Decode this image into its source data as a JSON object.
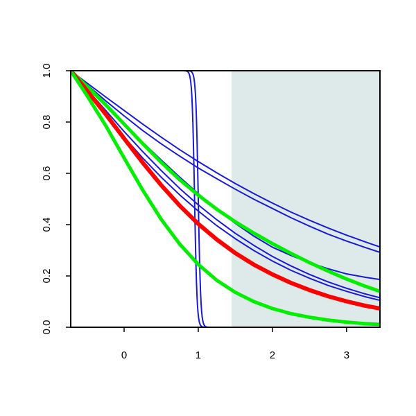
{
  "chart_data": {
    "type": "line",
    "title": "",
    "xlabel": "",
    "ylabel": "",
    "xlim": [
      -0.72,
      3.45
    ],
    "ylim": [
      0.0,
      1.0
    ],
    "grid": false,
    "legend": "none",
    "x_ticks": [
      0,
      1,
      2,
      3
    ],
    "x_tick_labels": [
      "0",
      "1",
      "2",
      "3"
    ],
    "y_ticks": [
      0.0,
      0.2,
      0.4,
      0.6,
      0.8,
      1.0
    ],
    "y_tick_labels": [
      "0.0",
      "0.2",
      "0.4",
      "0.6",
      "0.8",
      "1.0"
    ],
    "shaded_region": {
      "x_from": 1.45,
      "x_to": 3.45,
      "color": "#deeaea"
    },
    "colors": {
      "blue": "#1a1ad8",
      "red": "#ff0000",
      "green": "#00ee00",
      "axis": "#000000"
    },
    "x": [
      -0.72,
      -0.5,
      -0.25,
      0.0,
      0.25,
      0.5,
      0.75,
      1.0,
      1.25,
      1.5,
      1.75,
      2.0,
      2.25,
      2.5,
      2.75,
      3.0,
      3.25,
      3.45
    ],
    "series": [
      {
        "color": "blue",
        "width": 2,
        "values": [
          1.0,
          0.952,
          0.898,
          0.845,
          0.792,
          0.741,
          0.692,
          0.646,
          0.602,
          0.56,
          0.521,
          0.484,
          0.449,
          0.417,
          0.387,
          0.359,
          0.333,
          0.313
        ]
      },
      {
        "color": "blue",
        "width": 2,
        "values": [
          1.0,
          0.945,
          0.883,
          0.824,
          0.767,
          0.715,
          0.667,
          0.621,
          0.579,
          0.538,
          0.499,
          0.463,
          0.427,
          0.394,
          0.363,
          0.336,
          0.311,
          0.292
        ]
      },
      {
        "color": "blue",
        "width": 2,
        "values": [
          1.0,
          0.936,
          0.864,
          0.792,
          0.721,
          0.652,
          0.585,
          0.521,
          0.46,
          0.405,
          0.355,
          0.312,
          0.28,
          0.252,
          0.228,
          0.208,
          0.195,
          0.186
        ]
      },
      {
        "color": "blue",
        "width": 2,
        "values": [
          1.0,
          0.927,
          0.846,
          0.763,
          0.685,
          0.611,
          0.541,
          0.477,
          0.419,
          0.366,
          0.319,
          0.276,
          0.239,
          0.206,
          0.177,
          0.152,
          0.13,
          0.115
        ]
      },
      {
        "color": "blue",
        "width": 2,
        "values": [
          1.0,
          0.915,
          0.826,
          0.741,
          0.66,
          0.585,
          0.516,
          0.453,
          0.396,
          0.345,
          0.299,
          0.258,
          0.222,
          0.191,
          0.163,
          0.14,
          0.119,
          0.105
        ]
      },
      {
        "color": "green",
        "width": 5,
        "values": [
          1.0,
          0.939,
          0.868,
          0.792,
          0.716,
          0.643,
          0.575,
          0.515,
          0.46,
          0.411,
          0.367,
          0.326,
          0.288,
          0.252,
          0.219,
          0.188,
          0.16,
          0.14
        ]
      },
      {
        "color": "red",
        "width": 6,
        "values": [
          1.0,
          0.922,
          0.831,
          0.736,
          0.642,
          0.554,
          0.474,
          0.403,
          0.342,
          0.289,
          0.244,
          0.206,
          0.173,
          0.145,
          0.121,
          0.101,
          0.084,
          0.073
        ]
      },
      {
        "color": "green",
        "width": 5,
        "values": [
          1.0,
          0.903,
          0.787,
          0.66,
          0.535,
          0.421,
          0.324,
          0.245,
          0.183,
          0.136,
          0.1,
          0.073,
          0.053,
          0.039,
          0.028,
          0.02,
          0.014,
          0.011
        ]
      }
    ],
    "step_series": [
      {
        "color": "blue",
        "width": 2,
        "center": 0.95,
        "steepness": 60
      },
      {
        "color": "blue",
        "width": 2,
        "center": 1.0,
        "steepness": 60
      }
    ]
  }
}
